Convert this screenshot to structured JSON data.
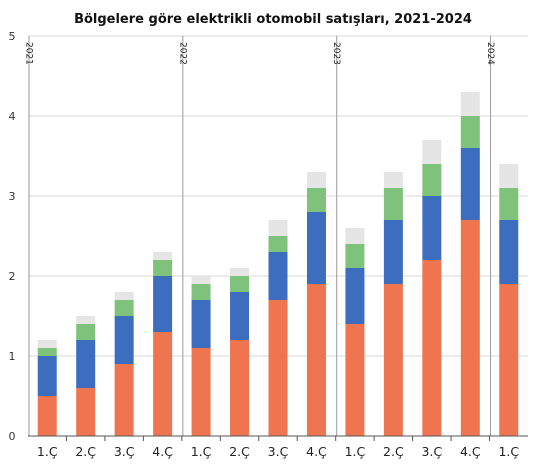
{
  "chart_data": {
    "type": "bar",
    "stacked": true,
    "title": "Bölgelere göre elektrikli otomobil satışları, 2021-2024",
    "xlabel": "",
    "ylabel": "",
    "ylim": [
      0,
      5
    ],
    "yticks": [
      0,
      1,
      2,
      3,
      4,
      5
    ],
    "grid": true,
    "categories": [
      "1.Ç",
      "2.Ç",
      "3.Ç",
      "4.Ç",
      "1.Ç",
      "2.Ç",
      "3.Ç",
      "4.Ç",
      "1.Ç",
      "2.Ç",
      "3.Ç",
      "4.Ç",
      "1.Ç"
    ],
    "year_groups": [
      {
        "label": "2021",
        "start_index": 0
      },
      {
        "label": "2022",
        "start_index": 4
      },
      {
        "label": "2023",
        "start_index": 8
      },
      {
        "label": "2024",
        "start_index": 12
      }
    ],
    "series": [
      {
        "color": "#ee7550",
        "values": [
          0.5,
          0.6,
          0.9,
          1.3,
          1.1,
          1.2,
          1.7,
          1.9,
          1.4,
          1.9,
          2.2,
          2.7,
          1.9
        ]
      },
      {
        "color": "#3c6dbf",
        "values": [
          0.5,
          0.6,
          0.6,
          0.7,
          0.6,
          0.6,
          0.6,
          0.9,
          0.7,
          0.8,
          0.8,
          0.9,
          0.8
        ]
      },
      {
        "color": "#7fc27c",
        "values": [
          0.1,
          0.2,
          0.2,
          0.2,
          0.2,
          0.2,
          0.2,
          0.3,
          0.3,
          0.4,
          0.4,
          0.4,
          0.4
        ]
      },
      {
        "color": "#e5e5e5",
        "values": [
          0.1,
          0.1,
          0.1,
          0.1,
          0.1,
          0.1,
          0.2,
          0.2,
          0.2,
          0.2,
          0.3,
          0.3,
          0.3
        ]
      }
    ]
  }
}
